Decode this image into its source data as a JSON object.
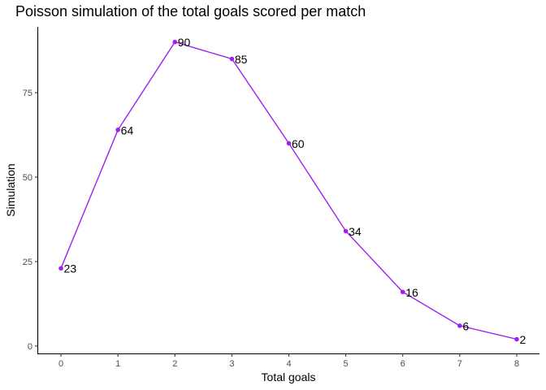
{
  "chart_data": {
    "type": "line",
    "title": "Poisson simulation of the total goals scored per match",
    "xlabel": "Total goals",
    "ylabel": "Simulation",
    "x": [
      0,
      1,
      2,
      3,
      4,
      5,
      6,
      7,
      8
    ],
    "series": [
      {
        "values": [
          23,
          64,
          90,
          85,
          60,
          34,
          16,
          6,
          2
        ]
      }
    ],
    "xlim": [
      -0.4,
      8.4
    ],
    "ylim": [
      -2.2,
      94.5
    ],
    "xticks": [
      0,
      1,
      2,
      3,
      4,
      5,
      6,
      7,
      8
    ],
    "yticks": [
      0,
      25,
      50,
      75
    ],
    "grid": false,
    "legend": "none",
    "colors": {
      "line": "#a020f0",
      "point": "#a020f0"
    }
  }
}
